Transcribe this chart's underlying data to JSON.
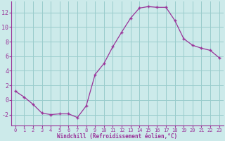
{
  "x": [
    0,
    1,
    2,
    3,
    4,
    5,
    6,
    7,
    8,
    9,
    10,
    11,
    12,
    13,
    14,
    15,
    16,
    17,
    18,
    19,
    20,
    21,
    22,
    23
  ],
  "y": [
    1.2,
    0.4,
    -0.6,
    -1.8,
    -2.0,
    -1.9,
    -1.9,
    -2.4,
    -0.8,
    3.5,
    5.0,
    7.3,
    9.3,
    11.2,
    12.6,
    12.8,
    12.7,
    12.7,
    10.9,
    8.4,
    7.5,
    7.1,
    6.8,
    5.8
  ],
  "line_color": "#993399",
  "marker": "+",
  "bg_color": "#cceaea",
  "grid_color": "#99cccc",
  "xlabel": "Windchill (Refroidissement éolien,°C)",
  "ylim": [
    -3.5,
    13.5
  ],
  "xlim": [
    -0.5,
    23.5
  ],
  "yticks": [
    -2,
    0,
    2,
    4,
    6,
    8,
    10,
    12
  ],
  "xticks": [
    0,
    1,
    2,
    3,
    4,
    5,
    6,
    7,
    8,
    9,
    10,
    11,
    12,
    13,
    14,
    15,
    16,
    17,
    18,
    19,
    20,
    21,
    22,
    23
  ],
  "tick_color": "#993399",
  "label_color": "#993399",
  "spine_color": "#993399",
  "figsize": [
    3.2,
    2.0
  ],
  "dpi": 100
}
